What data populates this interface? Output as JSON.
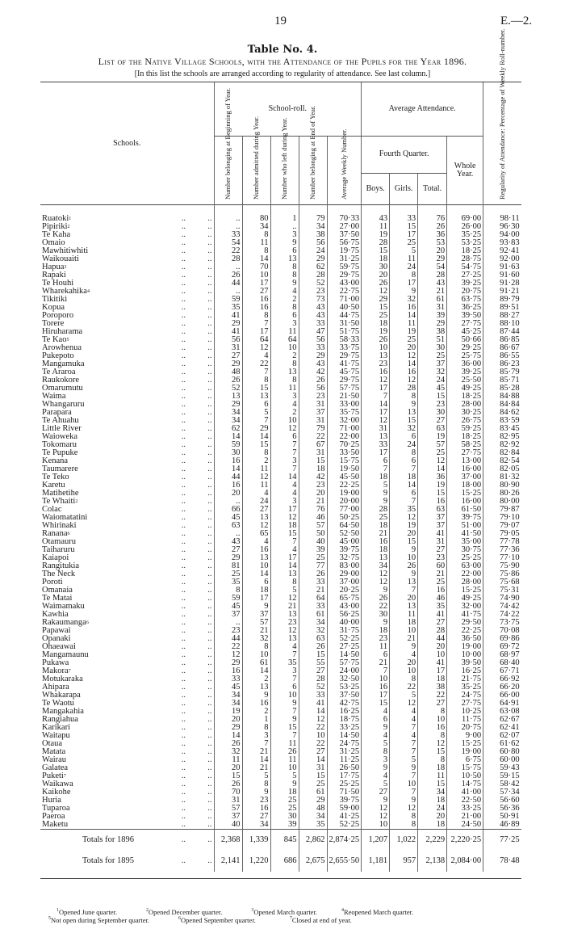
{
  "page": {
    "number": "19",
    "code": "E.—2."
  },
  "title": "Table No. 4.",
  "subtitle": "List of the Native Village Schools, with the Attendance of the Pupils for the Year 1896.",
  "note": "[In this list the schools are arranged according to regularity of attendance.   See last column.]",
  "headers": {
    "schools": "Schools.",
    "school_roll": "School-roll.",
    "begin": "Number belonging at Beginning of Year.",
    "admitted": "Number admitted during Year.",
    "left": "Number who left during Year.",
    "end": "Number belonging at End of Year.",
    "avg_weekly": "Average Weekly Number.",
    "average_attendance": "Average Attendance.",
    "fourth_quarter": "Fourth Quarter.",
    "boys": "Boys.",
    "girls": "Girls.",
    "total": "Total.",
    "whole_year": "Whole Year.",
    "regularity": "Regularity of Attendance: Percentage of Weekly Roll-number."
  },
  "rows": [
    [
      "Ruatoki",
      "1",
      "..",
      "80",
      "1",
      "79",
      "70·33",
      "43",
      "33",
      "76",
      "69·00",
      "98·11"
    ],
    [
      "Pipiriki",
      "2",
      "..",
      "34",
      "..",
      "34",
      "27·00",
      "11",
      "15",
      "26",
      "26·00",
      "96·30"
    ],
    [
      "Te Kaha",
      "",
      "33",
      "8",
      "3",
      "38",
      "37·50",
      "19",
      "17",
      "36",
      "35·25",
      "94·00"
    ],
    [
      "Omaio",
      "",
      "54",
      "11",
      "9",
      "56",
      "56·75",
      "28",
      "25",
      "53",
      "53·25",
      "93·83"
    ],
    [
      "Mawhitiwhiti",
      "",
      "22",
      "8",
      "6",
      "24",
      "19·75",
      "15",
      "5",
      "20",
      "18·25",
      "92·41"
    ],
    [
      "Waikouaiti",
      "",
      "28",
      "14",
      "13",
      "29",
      "31·25",
      "18",
      "11",
      "29",
      "28·75",
      "92·00"
    ],
    [
      "Hapua",
      "3",
      "..",
      "70",
      "8",
      "62",
      "59·75",
      "30",
      "24",
      "54",
      "54·75",
      "91·63"
    ],
    [
      "Rapaki",
      "",
      "26",
      "10",
      "8",
      "28",
      "29·75",
      "20",
      "8",
      "28",
      "27·25",
      "91·60"
    ],
    [
      "Te Houhi",
      "",
      "44",
      "17",
      "9",
      "52",
      "43·00",
      "26",
      "17",
      "43",
      "39·25",
      "91·28"
    ],
    [
      "Wharekahika",
      "4",
      "..",
      "27",
      "4",
      "23",
      "22·75",
      "12",
      "9",
      "21",
      "20·75",
      "91·21"
    ],
    [
      "Tikitiki",
      "",
      "59",
      "16",
      "2",
      "73",
      "71·00",
      "29",
      "32",
      "61",
      "63·75",
      "89·79"
    ],
    [
      "Kopua",
      "",
      "35",
      "16",
      "8",
      "43",
      "40·50",
      "15",
      "16",
      "31",
      "36·25",
      "89·51"
    ],
    [
      "Poroporo",
      "",
      "41",
      "8",
      "6",
      "43",
      "44·75",
      "25",
      "14",
      "39",
      "39·50",
      "88·27"
    ],
    [
      "Torere",
      "",
      "29",
      "7",
      "3",
      "33",
      "31·50",
      "18",
      "11",
      "29",
      "27·75",
      "88·10"
    ],
    [
      "Hiruharama",
      "",
      "41",
      "17",
      "11",
      "47",
      "51·75",
      "19",
      "19",
      "38",
      "45·25",
      "87·44"
    ],
    [
      "Te Kao",
      "5",
      "56",
      "64",
      "64",
      "56",
      "58·33",
      "26",
      "25",
      "51",
      "50·66",
      "86·85"
    ],
    [
      "Arowhenua",
      "",
      "31",
      "12",
      "10",
      "33",
      "33·75",
      "10",
      "20",
      "30",
      "29·25",
      "86·67"
    ],
    [
      "Pukepoto",
      "",
      "27",
      "4",
      "2",
      "29",
      "29·75",
      "13",
      "12",
      "25",
      "25·75",
      "86·55"
    ],
    [
      "Mangamuka",
      "",
      "29",
      "22",
      "8",
      "43",
      "41·75",
      "23",
      "14",
      "37",
      "36·00",
      "86·23"
    ],
    [
      "Te Araroa",
      "",
      "48",
      "7",
      "13",
      "42",
      "45·75",
      "16",
      "16",
      "32",
      "39·25",
      "85·79"
    ],
    [
      "Raukokore",
      "",
      "26",
      "8",
      "8",
      "26",
      "29·75",
      "12",
      "12",
      "24",
      "25·50",
      "85·71"
    ],
    [
      "Omarumutu",
      "",
      "52",
      "15",
      "11",
      "56",
      "57·75",
      "17",
      "28",
      "45",
      "49·25",
      "85·28"
    ],
    [
      "Waima",
      "",
      "13",
      "13",
      "3",
      "23",
      "21·50",
      "7",
      "8",
      "15",
      "18·25",
      "84·88"
    ],
    [
      "Whangaruru",
      "",
      "29",
      "6",
      "4",
      "31",
      "33·00",
      "14",
      "9",
      "23",
      "28·00",
      "84·84"
    ],
    [
      "Parapara",
      "",
      "34",
      "5",
      "2",
      "37",
      "35·75",
      "17",
      "13",
      "30",
      "30·25",
      "84·62"
    ],
    [
      "Te Ahuahu",
      "",
      "34",
      "7",
      "10",
      "31",
      "32·00",
      "12",
      "15",
      "27",
      "26·75",
      "83·59"
    ],
    [
      "Little River",
      "",
      "62",
      "29",
      "12",
      "79",
      "71·00",
      "31",
      "32",
      "63",
      "59·25",
      "83·45"
    ],
    [
      "Waioweka",
      "",
      "14",
      "14",
      "6",
      "22",
      "22·00",
      "13",
      "6",
      "19",
      "18·25",
      "82·95"
    ],
    [
      "Tokomaru",
      "",
      "59",
      "15",
      "7",
      "67",
      "70·25",
      "33",
      "24",
      "57",
      "58·25",
      "82·92"
    ],
    [
      "Te Pupuke",
      "",
      "30",
      "8",
      "7",
      "31",
      "33·50",
      "17",
      "8",
      "25",
      "27·75",
      "82·84"
    ],
    [
      "Kenana",
      "",
      "16",
      "2",
      "3",
      "15",
      "15·75",
      "6",
      "6",
      "12",
      "13·00",
      "82·54"
    ],
    [
      "Taumarere",
      "",
      "14",
      "11",
      "7",
      "18",
      "19·50",
      "7",
      "7",
      "14",
      "16·00",
      "82·05"
    ],
    [
      "Te Teko",
      "",
      "44",
      "12",
      "14",
      "42",
      "45·50",
      "18",
      "18",
      "36",
      "37·00",
      "81·32"
    ],
    [
      "Karetu",
      "",
      "16",
      "11",
      "4",
      "23",
      "22·25",
      "5",
      "14",
      "19",
      "18·00",
      "80·90"
    ],
    [
      "Matihetihe",
      "",
      "20",
      "4",
      "4",
      "20",
      "19·00",
      "9",
      "6",
      "15",
      "15·25",
      "80·26"
    ],
    [
      "Te Whaiti",
      "2",
      "..",
      "24",
      "3",
      "21",
      "20·00",
      "9",
      "7",
      "16",
      "16·00",
      "80·00"
    ],
    [
      "Colac",
      "",
      "66",
      "27",
      "17",
      "76",
      "77·00",
      "28",
      "35",
      "63",
      "61·50",
      "79·87"
    ],
    [
      "Waiomatatini",
      "",
      "45",
      "13",
      "12",
      "46",
      "50·25",
      "25",
      "12",
      "37",
      "39·75",
      "79·10"
    ],
    [
      "Whirinaki",
      "",
      "63",
      "12",
      "18",
      "57",
      "64·50",
      "18",
      "19",
      "37",
      "51·00",
      "79·07"
    ],
    [
      "Ranana",
      "6",
      "..",
      "65",
      "15",
      "50",
      "52·50",
      "21",
      "20",
      "41",
      "41·50",
      "79·05"
    ],
    [
      "Otamauru",
      "",
      "43",
      "4",
      "7",
      "40",
      "45·00",
      "16",
      "15",
      "31",
      "35·00",
      "77·78"
    ],
    [
      "Taiharuru",
      "",
      "27",
      "16",
      "4",
      "39",
      "39·75",
      "18",
      "9",
      "27",
      "30·75",
      "77·36"
    ],
    [
      "Kaiapoi",
      "",
      "29",
      "13",
      "17",
      "25",
      "32·75",
      "13",
      "10",
      "23",
      "25·25",
      "77·10"
    ],
    [
      "Rangitukia",
      "",
      "81",
      "10",
      "14",
      "77",
      "83·00",
      "34",
      "26",
      "60",
      "63·00",
      "75·90"
    ],
    [
      "The Neck",
      "",
      "25",
      "14",
      "13",
      "26",
      "29·00",
      "12",
      "9",
      "21",
      "22·00",
      "75·86"
    ],
    [
      "Poroti",
      "",
      "35",
      "6",
      "8",
      "33",
      "37·00",
      "12",
      "13",
      "25",
      "28·00",
      "75·68"
    ],
    [
      "Omanaia",
      "",
      "8",
      "18",
      "5",
      "21",
      "20·25",
      "9",
      "7",
      "16",
      "15·25",
      "75·31"
    ],
    [
      "Te Matai",
      "",
      "59",
      "17",
      "12",
      "64",
      "65·75",
      "26",
      "20",
      "46",
      "49·25",
      "74·90"
    ],
    [
      "Waimamaku",
      "",
      "45",
      "9",
      "21",
      "33",
      "43·00",
      "22",
      "13",
      "35",
      "32·00",
      "74·42"
    ],
    [
      "Kawhia",
      "",
      "37",
      "37",
      "13",
      "61",
      "56·25",
      "30",
      "11",
      "41",
      "41·75",
      "74·22"
    ],
    [
      "Rakaumanga",
      "6",
      "..",
      "57",
      "23",
      "34",
      "40·00",
      "9",
      "18",
      "27",
      "29·50",
      "73·75"
    ],
    [
      "Papawai",
      "",
      "23",
      "21",
      "12",
      "32",
      "31·75",
      "18",
      "10",
      "28",
      "22·25",
      "70·08"
    ],
    [
      "Opanaki",
      "",
      "44",
      "32",
      "13",
      "63",
      "52·25",
      "23",
      "21",
      "44",
      "36·50",
      "69·86"
    ],
    [
      "Ohaeawai",
      "",
      "22",
      "8",
      "4",
      "26",
      "27·25",
      "11",
      "9",
      "20",
      "19·00",
      "69·72"
    ],
    [
      "Mangamaunu",
      "",
      "12",
      "10",
      "7",
      "15",
      "14·50",
      "6",
      "4",
      "10",
      "10·00",
      "68·97"
    ],
    [
      "Pukawa",
      "",
      "29",
      "61",
      "35",
      "55",
      "57·75",
      "21",
      "20",
      "41",
      "39·50",
      "68·40"
    ],
    [
      "Makora",
      "7",
      "16",
      "14",
      "3",
      "27",
      "24·00",
      "7",
      "10",
      "17",
      "16·25",
      "67·71"
    ],
    [
      "Motukaraka",
      "",
      "33",
      "2",
      "7",
      "28",
      "32·50",
      "10",
      "8",
      "18",
      "21·75",
      "66·92"
    ],
    [
      "Ahipara",
      "",
      "45",
      "13",
      "6",
      "52",
      "53·25",
      "16",
      "22",
      "38",
      "35·25",
      "66·20"
    ],
    [
      "Whakarapa",
      "",
      "34",
      "9",
      "10",
      "33",
      "37·50",
      "17",
      "5",
      "22",
      "24·75",
      "66·00"
    ],
    [
      "Te Waotu",
      "",
      "34",
      "16",
      "9",
      "41",
      "42·75",
      "15",
      "12",
      "27",
      "27·75",
      "64·91"
    ],
    [
      "Mangakahia",
      "",
      "19",
      "2",
      "7",
      "14",
      "16·25",
      "4",
      "4",
      "8",
      "10·25",
      "63·08"
    ],
    [
      "Rangiahua",
      "",
      "20",
      "1",
      "9",
      "12",
      "18·75",
      "6",
      "4",
      "10",
      "11·75",
      "62·67"
    ],
    [
      "Karikari",
      "",
      "29",
      "8",
      "15",
      "22",
      "33·25",
      "9",
      "7",
      "16",
      "20·75",
      "62·41"
    ],
    [
      "Waitapu",
      "",
      "14",
      "3",
      "7",
      "10",
      "14·50",
      "4",
      "4",
      "8",
      "9·00",
      "62·07"
    ],
    [
      "Otaua",
      "",
      "26",
      "7",
      "11",
      "22",
      "24·75",
      "5",
      "7",
      "12",
      "15·25",
      "61·62"
    ],
    [
      "Matata",
      "",
      "32",
      "21",
      "26",
      "27",
      "31·25",
      "8",
      "7",
      "15",
      "19·00",
      "60·80"
    ],
    [
      "Wairau",
      "",
      "11",
      "14",
      "11",
      "14",
      "11·25",
      "3",
      "5",
      "8",
      "6·75",
      "60·00"
    ],
    [
      "Galatea",
      "",
      "20",
      "21",
      "10",
      "31",
      "26·50",
      "9",
      "9",
      "18",
      "15·75",
      "59·43"
    ],
    [
      "Puketi",
      "7",
      "15",
      "5",
      "5",
      "15",
      "17·75",
      "4",
      "7",
      "11",
      "10·50",
      "59·15"
    ],
    [
      "Waikawa",
      "",
      "26",
      "8",
      "9",
      "25",
      "25·25",
      "5",
      "10",
      "15",
      "14·75",
      "58·42"
    ],
    [
      "Kaikohe",
      "",
      "70",
      "9",
      "18",
      "61",
      "71·50",
      "27",
      "7",
      "34",
      "41·00",
      "57·34"
    ],
    [
      "Huria",
      "",
      "31",
      "23",
      "25",
      "29",
      "39·75",
      "9",
      "9",
      "18",
      "22·50",
      "56·60"
    ],
    [
      "Tuparoa",
      "",
      "57",
      "16",
      "25",
      "48",
      "59·00",
      "12",
      "12",
      "24",
      "33·25",
      "56·36"
    ],
    [
      "Paeroa",
      "",
      "37",
      "27",
      "30",
      "34",
      "41·25",
      "12",
      "8",
      "20",
      "21·00",
      "50·91"
    ],
    [
      "Maketu",
      "",
      "40",
      "34",
      "39",
      "35",
      "52·25",
      "10",
      "8",
      "18",
      "24·50",
      "46·89"
    ]
  ],
  "totals": [
    [
      "Totals for 1896",
      "2,368",
      "1,339",
      "845",
      "2,862",
      "2,874·25",
      "1,207",
      "1,022",
      "2,229",
      "2,220·25",
      "77·25"
    ],
    [
      "Totals for 1895",
      "2,141",
      "1,220",
      "686",
      "2,675",
      "2,655·50",
      "1,181",
      "957",
      "2,138",
      "2,084·00",
      "78·48"
    ]
  ],
  "dots": "..",
  "footnotes": [
    [
      "1",
      "Opened June quarter."
    ],
    [
      "2",
      "Opened December quarter."
    ],
    [
      "3",
      "Opened March quarter."
    ],
    [
      "4",
      "Reopened March quarter."
    ],
    [
      "5",
      "Not open during September quarter."
    ],
    [
      "6",
      "Opened September quarter."
    ],
    [
      "7",
      "Closed at end of year."
    ]
  ]
}
